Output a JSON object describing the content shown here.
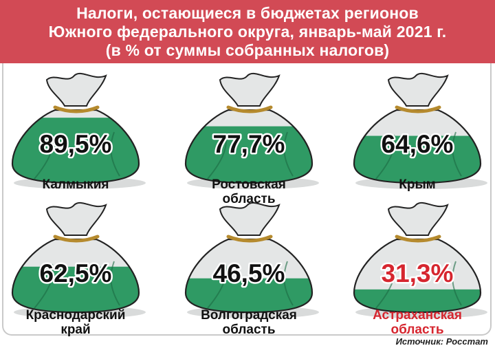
{
  "title": {
    "line1": "Налоги, остающиеся в бюджетах регионов",
    "line2": "Южного федерального округа, январь-май 2021 г.",
    "line3": "(в % от суммы собранных налогов)"
  },
  "source": "Источник: Росстат",
  "colors": {
    "header": "#d24a55",
    "bag_green": "#2f9a64",
    "bag_light": "#e4e6e6",
    "highlight": "#d6262f",
    "text": "#111111"
  },
  "chart_data": {
    "type": "pictogram",
    "unit": "%",
    "series": [
      {
        "values": [
          89.5,
          77.7,
          64.6,
          62.5,
          46.5,
          31.3
        ],
        "labels": [
          "89,5%",
          "77,7%",
          "64,6%",
          "62,5%",
          "46,5%",
          "31,3%"
        ]
      }
    ],
    "categories": [
      [
        "Калмыкия"
      ],
      [
        "Ростовская",
        "область"
      ],
      [
        "Крым"
      ],
      [
        "Краснодарский",
        "край"
      ],
      [
        "Волгоградская",
        "область"
      ],
      [
        "Астраханская",
        "область"
      ]
    ],
    "highlight_index": 5
  }
}
